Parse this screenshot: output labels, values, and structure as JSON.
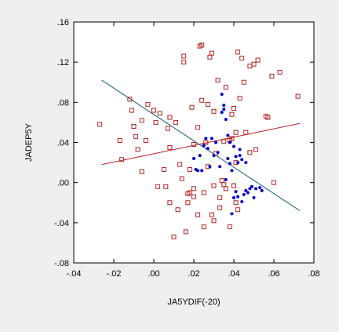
{
  "chart_data": {
    "type": "scatter",
    "title": "",
    "xlabel": "JA5YDIF(-20)",
    "ylabel": "JADEP5Y",
    "xlim": [
      -0.04,
      0.08
    ],
    "ylim": [
      -0.08,
      0.16
    ],
    "x_ticks": [
      -0.04,
      -0.02,
      0.0,
      0.02,
      0.04,
      0.06,
      0.08
    ],
    "x_tick_labels": [
      "-.04",
      "-.02",
      ".00",
      ".02",
      ".04",
      ".06",
      ".08"
    ],
    "y_ticks": [
      -0.08,
      -0.04,
      0.0,
      0.04,
      0.08,
      0.12,
      0.16
    ],
    "y_tick_labels": [
      "-.08",
      "-.04",
      ".00",
      ".04",
      ".08",
      ".12",
      ".16"
    ],
    "grid": false,
    "background_color": "#ffffff",
    "page_color": "#efefef",
    "series": [
      {
        "marker": "open-square",
        "color": "#b22222",
        "points": [
          [
            -0.027,
            0.058
          ],
          [
            -0.017,
            0.042
          ],
          [
            -0.016,
            0.023
          ],
          [
            -0.012,
            0.083
          ],
          [
            -0.011,
            0.072
          ],
          [
            -0.01,
            0.056
          ],
          [
            -0.009,
            0.046
          ],
          [
            -0.008,
            0.033
          ],
          [
            -0.006,
            0.011
          ],
          [
            -0.006,
            0.062
          ],
          [
            -0.004,
            0.042
          ],
          [
            -0.003,
            0.078
          ],
          [
            0.0,
            0.072
          ],
          [
            0.001,
            0.06
          ],
          [
            0.002,
            -0.004
          ],
          [
            0.003,
            0.069
          ],
          [
            0.005,
            0.013
          ],
          [
            0.006,
            -0.004
          ],
          [
            0.007,
            0.054
          ],
          [
            0.008,
            -0.02
          ],
          [
            0.008,
            0.065
          ],
          [
            0.008,
            0.035
          ],
          [
            0.01,
            -0.054
          ],
          [
            0.011,
            0.06
          ],
          [
            0.012,
            -0.027
          ],
          [
            0.013,
            0.018
          ],
          [
            0.014,
            0.004
          ],
          [
            0.015,
            0.126
          ],
          [
            0.015,
            0.12
          ],
          [
            0.016,
            -0.049
          ],
          [
            0.017,
            -0.011
          ],
          [
            0.017,
            -0.02
          ],
          [
            0.018,
            0.013
          ],
          [
            0.018,
            -0.01
          ],
          [
            0.019,
            0.075
          ],
          [
            0.02,
            -0.006
          ],
          [
            0.02,
            -0.014
          ],
          [
            0.02,
            0.038
          ],
          [
            0.022,
            0.055
          ],
          [
            0.022,
            -0.032
          ],
          [
            0.023,
            0.136
          ],
          [
            0.024,
            0.137
          ],
          [
            0.024,
            0.082
          ],
          [
            0.025,
            -0.044
          ],
          [
            0.025,
            -0.01
          ],
          [
            0.026,
            0.04
          ],
          [
            0.027,
            0.078
          ],
          [
            0.027,
            0.016
          ],
          [
            0.028,
            0.125
          ],
          [
            0.029,
            0.129
          ],
          [
            0.029,
            -0.032
          ],
          [
            0.03,
            -0.038
          ],
          [
            0.03,
            -0.003
          ],
          [
            0.03,
            0.071
          ],
          [
            0.031,
            0.029
          ],
          [
            0.032,
            0.102
          ],
          [
            0.033,
            -0.025
          ],
          [
            0.033,
            -0.015
          ],
          [
            0.034,
            0.002
          ],
          [
            0.035,
            -0.002
          ],
          [
            0.035,
            0.041
          ],
          [
            0.036,
            0.095
          ],
          [
            0.036,
            -0.006
          ],
          [
            0.038,
            0.042
          ],
          [
            0.038,
            -0.044
          ],
          [
            0.039,
            0.044
          ],
          [
            0.039,
            0.068
          ],
          [
            0.04,
            0.074
          ],
          [
            0.04,
            -0.003
          ],
          [
            0.041,
            0.02
          ],
          [
            0.041,
            -0.02
          ],
          [
            0.041,
            0.05
          ],
          [
            0.042,
            0.13
          ],
          [
            0.042,
            -0.027
          ],
          [
            0.043,
            0.084
          ],
          [
            0.044,
            0.124
          ],
          [
            0.045,
            0.1
          ],
          [
            0.046,
            0.05
          ],
          [
            0.048,
            0.116
          ],
          [
            0.048,
            0.03
          ],
          [
            0.05,
            0.118
          ],
          [
            0.051,
            0.033
          ],
          [
            0.052,
            0.122
          ],
          [
            0.056,
            0.066
          ],
          [
            0.057,
            0.065
          ],
          [
            0.059,
            0.106
          ],
          [
            0.06,
            0.0
          ],
          [
            0.063,
            0.11
          ],
          [
            0.072,
            0.086
          ]
        ]
      },
      {
        "marker": "filled-circle",
        "color": "#0000cc",
        "points": [
          [
            0.02,
            0.024
          ],
          [
            0.021,
            0.013
          ],
          [
            0.022,
            0.012
          ],
          [
            0.023,
            0.027
          ],
          [
            0.024,
            0.012
          ],
          [
            0.025,
            0.037
          ],
          [
            0.026,
            0.044
          ],
          [
            0.027,
            0.034
          ],
          [
            0.028,
            0.016
          ],
          [
            0.029,
            0.044
          ],
          [
            0.03,
            0.027
          ],
          [
            0.031,
            0.04
          ],
          [
            0.032,
            0.03
          ],
          [
            0.033,
            0.016
          ],
          [
            0.034,
            0.07
          ],
          [
            0.034,
            0.088
          ],
          [
            0.035,
            0.073
          ],
          [
            0.035,
            0.077
          ],
          [
            0.036,
            0.063
          ],
          [
            0.036,
            0.003
          ],
          [
            0.037,
            0.047
          ],
          [
            0.037,
            0.024
          ],
          [
            0.038,
            0.04
          ],
          [
            0.038,
            0.019
          ],
          [
            0.039,
            0.012
          ],
          [
            0.039,
            -0.031
          ],
          [
            0.04,
            0.036
          ],
          [
            0.04,
            -0.015
          ],
          [
            0.041,
            0.026
          ],
          [
            0.041,
            -0.009
          ],
          [
            0.042,
            0.02
          ],
          [
            0.042,
            -0.014
          ],
          [
            0.043,
            0.033
          ],
          [
            0.043,
            0.027
          ],
          [
            0.044,
            0.023
          ],
          [
            0.044,
            -0.019
          ],
          [
            0.045,
            -0.012
          ],
          [
            0.046,
            -0.008
          ],
          [
            0.046,
            0.02
          ],
          [
            0.047,
            -0.01
          ],
          [
            0.048,
            -0.006
          ],
          [
            0.049,
            -0.004
          ],
          [
            0.05,
            -0.015
          ],
          [
            0.051,
            -0.006
          ],
          [
            0.053,
            -0.005
          ],
          [
            0.054,
            -0.008
          ]
        ]
      }
    ],
    "fit_lines": [
      {
        "color": "#b22222",
        "from": [
          -0.026,
          0.018
        ],
        "to": [
          0.073,
          0.059
        ]
      },
      {
        "color": "#0d5b7a",
        "from": [
          -0.026,
          0.102
        ],
        "to": [
          0.073,
          -0.028
        ]
      }
    ]
  }
}
